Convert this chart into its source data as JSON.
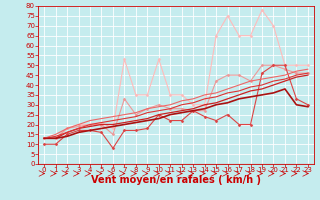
{
  "xlabel": "Vent moyen/en rafales ( km/h )",
  "xlim": [
    -0.5,
    23.5
  ],
  "ylim": [
    0,
    80
  ],
  "yticks": [
    0,
    5,
    10,
    15,
    20,
    25,
    30,
    35,
    40,
    45,
    50,
    55,
    60,
    65,
    70,
    75,
    80
  ],
  "xticks": [
    0,
    1,
    2,
    3,
    4,
    5,
    6,
    7,
    8,
    9,
    10,
    11,
    12,
    13,
    14,
    15,
    16,
    17,
    18,
    19,
    20,
    21,
    22,
    23
  ],
  "bg_color": "#c5ecee",
  "grid_color": "#ffffff",
  "series": [
    {
      "color": "#ffbbbb",
      "marker": "D",
      "markersize": 1.5,
      "linewidth": 0.8,
      "y": [
        13,
        13,
        18,
        20,
        20,
        21,
        18,
        53,
        35,
        35,
        53,
        35,
        35,
        30,
        30,
        65,
        75,
        65,
        65,
        78,
        70,
        50,
        50,
        50
      ]
    },
    {
      "color": "#ee9999",
      "marker": "D",
      "markersize": 1.5,
      "linewidth": 0.8,
      "y": [
        13,
        13,
        18,
        19,
        20,
        20,
        15,
        33,
        25,
        28,
        30,
        28,
        28,
        27,
        27,
        42,
        45,
        45,
        42,
        50,
        50,
        48,
        46,
        46
      ]
    },
    {
      "color": "#dd4444",
      "marker": "D",
      "markersize": 1.5,
      "linewidth": 0.8,
      "y": [
        10,
        10,
        15,
        17,
        17,
        16,
        8,
        17,
        17,
        18,
        25,
        22,
        22,
        27,
        24,
        22,
        25,
        20,
        20,
        46,
        50,
        50,
        33,
        30
      ]
    },
    {
      "color": "#cc2222",
      "marker": null,
      "markersize": 0,
      "linewidth": 0.9,
      "y": [
        13,
        13,
        16,
        18,
        19,
        20,
        20,
        21,
        22,
        23,
        25,
        26,
        27,
        28,
        30,
        31,
        33,
        35,
        37,
        38,
        40,
        42,
        44,
        45
      ]
    },
    {
      "color": "#dd3333",
      "marker": null,
      "markersize": 0,
      "linewidth": 0.8,
      "y": [
        13,
        14,
        16,
        18,
        20,
        21,
        22,
        23,
        24,
        26,
        27,
        28,
        30,
        31,
        33,
        34,
        36,
        37,
        39,
        40,
        42,
        43,
        45,
        46
      ]
    },
    {
      "color": "#ee6666",
      "marker": null,
      "markersize": 0,
      "linewidth": 0.8,
      "y": [
        13,
        15,
        18,
        20,
        22,
        23,
        24,
        25,
        26,
        28,
        29,
        30,
        32,
        33,
        35,
        36,
        38,
        40,
        42,
        43,
        44,
        45,
        47,
        48
      ]
    },
    {
      "color": "#aa1111",
      "marker": null,
      "markersize": 0,
      "linewidth": 1.2,
      "y": [
        13,
        13,
        14,
        16,
        17,
        18,
        19,
        20,
        21,
        22,
        23,
        25,
        26,
        27,
        28,
        30,
        31,
        33,
        34,
        35,
        36,
        38,
        30,
        29
      ]
    }
  ],
  "arrow_color": "#cc0000",
  "xlabel_color": "#cc0000",
  "xlabel_fontsize": 7,
  "tick_fontsize": 5,
  "tick_color": "#cc0000"
}
